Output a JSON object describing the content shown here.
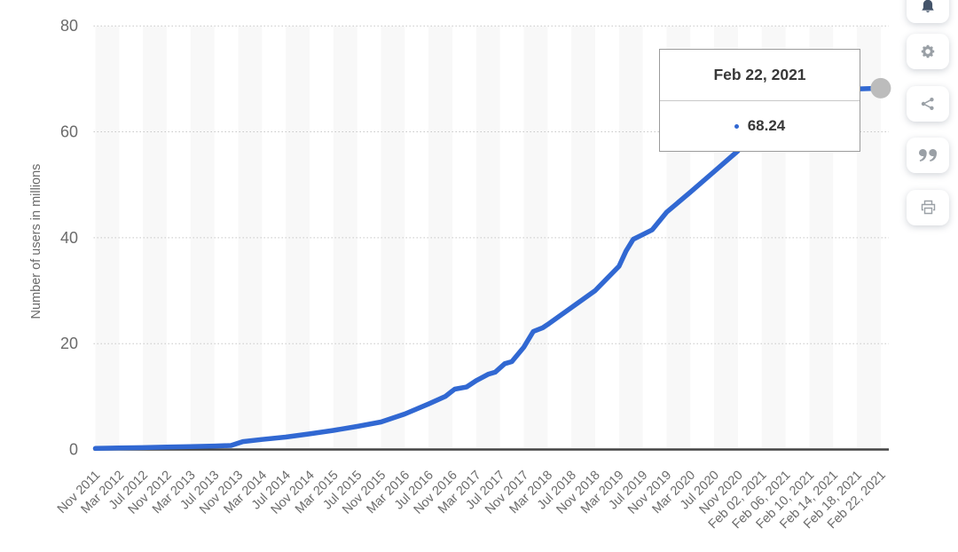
{
  "chart_data": {
    "type": "line",
    "title": "",
    "xlabel": "",
    "ylabel": "Number of users in millions",
    "ylim": [
      0,
      80
    ],
    "yticks": [
      0,
      20,
      40,
      60,
      80
    ],
    "grid": "horizontal-dotted",
    "legend": "none",
    "categories": [
      "Nov 2011",
      "Mar 2012",
      "Jul 2012",
      "Nov 2012",
      "Mar 2013",
      "Jul 2013",
      "Nov 2013",
      "Mar 2014",
      "Jul 2014",
      "Nov 2014",
      "Mar 2015",
      "Jul 2015",
      "Nov 2015",
      "Mar 2016",
      "Jul 2016",
      "Nov 2016",
      "Mar 2017",
      "Jul 2017",
      "Nov 2017",
      "Mar 2018",
      "Jul 2018",
      "Nov 2018",
      "Mar 2019",
      "Jul 2019",
      "Nov 2019",
      "Mar 2020",
      "Jul 2020",
      "Nov 2020",
      "Feb 02, 2021",
      "Feb 06, 2021",
      "Feb 10, 2021",
      "Feb 14, 2021",
      "Feb 18, 2021",
      "Feb 22, 2021"
    ],
    "series": [
      {
        "name": "Number of users in millions",
        "values": [
          0.2,
          0.28,
          0.35,
          0.45,
          0.55,
          0.65,
          0.8,
          1.9,
          2.35,
          2.95,
          3.6,
          4.35,
          5.2,
          6.7,
          8.6,
          11.4,
          13.0,
          16.2,
          19.3,
          23.6,
          26.8,
          30.0,
          34.6,
          40.6,
          44.8,
          48.6,
          52.5,
          56.4,
          64.8,
          66.3,
          67.2,
          67.8,
          68.1,
          68.24
        ],
        "detail_points": [
          [
            0,
            0.2
          ],
          [
            1,
            0.28
          ],
          [
            2,
            0.35
          ],
          [
            3,
            0.45
          ],
          [
            4,
            0.55
          ],
          [
            5,
            0.65
          ],
          [
            5.7,
            0.75
          ],
          [
            6.2,
            1.5
          ],
          [
            7,
            1.9
          ],
          [
            8,
            2.35
          ],
          [
            9,
            2.95
          ],
          [
            10,
            3.6
          ],
          [
            11,
            4.35
          ],
          [
            12,
            5.2
          ],
          [
            13,
            6.7
          ],
          [
            14,
            8.6
          ],
          [
            14.7,
            10.0
          ],
          [
            15.1,
            11.4
          ],
          [
            15.6,
            11.8
          ],
          [
            16,
            13.0
          ],
          [
            16.5,
            14.2
          ],
          [
            16.8,
            14.6
          ],
          [
            17.2,
            16.2
          ],
          [
            17.5,
            16.6
          ],
          [
            18,
            19.3
          ],
          [
            18.4,
            22.3
          ],
          [
            18.8,
            23.0
          ],
          [
            19,
            23.6
          ],
          [
            20,
            26.8
          ],
          [
            21,
            30.0
          ],
          [
            21.5,
            32.3
          ],
          [
            22,
            34.6
          ],
          [
            22.3,
            37.5
          ],
          [
            22.6,
            39.7
          ],
          [
            23,
            40.6
          ],
          [
            23.4,
            41.5
          ],
          [
            24,
            44.8
          ],
          [
            25,
            48.6
          ],
          [
            26,
            52.5
          ],
          [
            27,
            56.4
          ],
          [
            27.5,
            61.5
          ],
          [
            28,
            64.8
          ],
          [
            29,
            66.3
          ],
          [
            30,
            67.2
          ],
          [
            31,
            67.8
          ],
          [
            32,
            68.1
          ],
          [
            33,
            68.24
          ]
        ]
      }
    ],
    "tooltip": {
      "date": "Feb 22, 2021",
      "value": "68.24"
    },
    "colors": {
      "line": "#3168d2",
      "marker": "#bcbcbc",
      "stripe": "#f8f8f8",
      "grid": "#c8c8c8",
      "axis": "#444444",
      "label": "#6b6b6b"
    }
  },
  "actions": {
    "buttons": [
      {
        "name": "alerts",
        "icon": "bell-icon"
      },
      {
        "name": "settings",
        "icon": "gear-icon"
      },
      {
        "name": "share",
        "icon": "share-icon"
      },
      {
        "name": "cite",
        "icon": "quote-icon"
      },
      {
        "name": "print",
        "icon": "printer-icon"
      }
    ]
  }
}
